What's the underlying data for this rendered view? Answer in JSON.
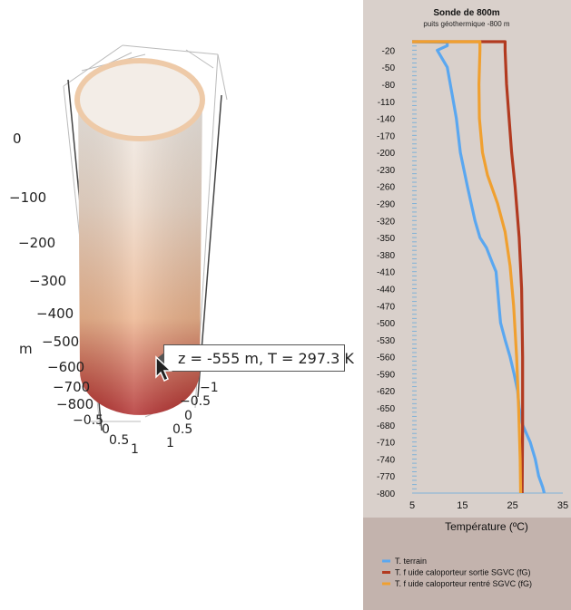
{
  "scene3d": {
    "axis_title": "m",
    "z_ticks": [
      "0",
      "−100",
      "−200",
      "−300",
      "−400",
      "−500",
      "−600",
      "−700",
      "−800"
    ],
    "x_ticks": [
      "−0.5",
      "0",
      "0.5",
      "1"
    ],
    "y_ticks": [
      "−1",
      "−0.5",
      "0",
      "0.5",
      "1"
    ],
    "tooltip": "z = -555 m, T = 297.3 K",
    "colors": {
      "top": "#f0ede9",
      "mid": "#ecb38c",
      "bottom": "#b02a2a"
    }
  },
  "chart_data": {
    "type": "line",
    "title": "Sonde de 800m",
    "subtitle": "puits géothermique -800 m",
    "xlabel": "Température (ºC)",
    "ylabel": "",
    "xlim": [
      5,
      35
    ],
    "ylim": [
      -800,
      -5
    ],
    "x_ticks": [
      "5",
      "15",
      "25",
      "35"
    ],
    "y_ticks": [
      "-20",
      "-50",
      "-80",
      "-110",
      "-140",
      "-170",
      "-200",
      "-230",
      "-260",
      "-290",
      "-320",
      "-350",
      "-380",
      "-410",
      "-440",
      "-470",
      "-500",
      "-530",
      "-560",
      "-590",
      "-620",
      "-650",
      "-680",
      "-710",
      "-740",
      "-770",
      "-800"
    ],
    "legend_position": "bottom",
    "series": [
      {
        "name": "T. terrain",
        "color": "#5aa7f0",
        "points": [
          [
            5,
            -5
          ],
          [
            12,
            -6
          ],
          [
            12,
            -12
          ],
          [
            10,
            -20
          ],
          [
            12,
            -50
          ],
          [
            13,
            -100
          ],
          [
            13.8,
            -140
          ],
          [
            14.6,
            -200
          ],
          [
            16,
            -260
          ],
          [
            17.5,
            -320
          ],
          [
            18.5,
            -350
          ],
          [
            19.8,
            -368
          ],
          [
            21,
            -395
          ],
          [
            21.7,
            -410
          ],
          [
            22,
            -440
          ],
          [
            22.3,
            -470
          ],
          [
            22.6,
            -500
          ],
          [
            23.5,
            -530
          ],
          [
            24.5,
            -560
          ],
          [
            25.3,
            -590
          ],
          [
            26,
            -620
          ],
          [
            26.3,
            -650
          ],
          [
            27,
            -680
          ],
          [
            28.5,
            -710
          ],
          [
            29.5,
            -740
          ],
          [
            30.2,
            -770
          ],
          [
            31,
            -790
          ],
          [
            31.3,
            -800
          ]
        ]
      },
      {
        "name": "T. f uide caloporteur sortie SGVC (fG)",
        "color": "#b23a20",
        "points": [
          [
            5,
            -5
          ],
          [
            23.5,
            -5
          ],
          [
            23.5,
            -20
          ],
          [
            23.8,
            -80
          ],
          [
            24.3,
            -140
          ],
          [
            24.8,
            -200
          ],
          [
            25.5,
            -260
          ],
          [
            26.3,
            -350
          ],
          [
            26.8,
            -440
          ],
          [
            27,
            -560
          ],
          [
            27,
            -680
          ],
          [
            26.9,
            -800
          ]
        ]
      },
      {
        "name": "T. f uide caloporteur rentré SGVC (fG)",
        "color": "#f0a030",
        "points": [
          [
            5,
            -5
          ],
          [
            18.5,
            -5
          ],
          [
            18.5,
            -20
          ],
          [
            18.3,
            -80
          ],
          [
            18.4,
            -140
          ],
          [
            19,
            -200
          ],
          [
            20,
            -240
          ],
          [
            22,
            -290
          ],
          [
            23.5,
            -340
          ],
          [
            24.5,
            -400
          ],
          [
            25.2,
            -470
          ],
          [
            25.8,
            -560
          ],
          [
            26.2,
            -650
          ],
          [
            26.5,
            -740
          ],
          [
            26.6,
            -800
          ]
        ]
      }
    ]
  }
}
